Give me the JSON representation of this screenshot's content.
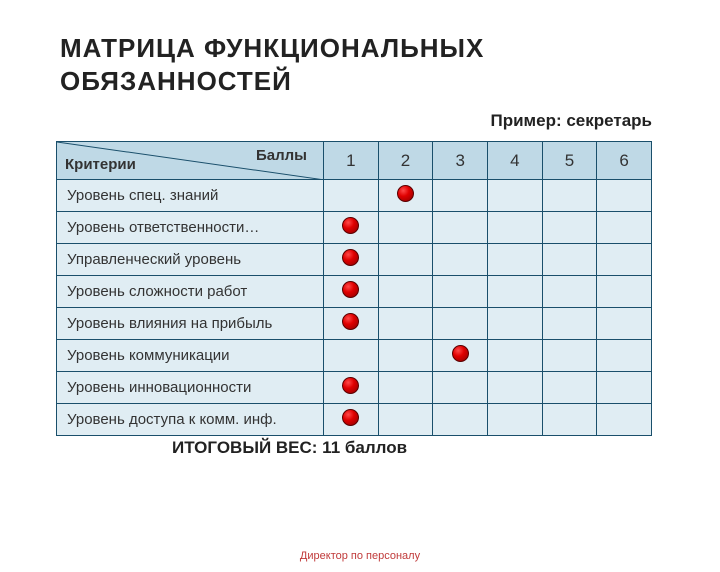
{
  "title": "МАТРИЦА ФУНКЦИОНАЛЬНЫХ ОБЯЗАННОСТЕЙ",
  "example": "Пример: секретарь",
  "table": {
    "header_left": "Критерии",
    "header_right": "Баллы",
    "score_columns": [
      "1",
      "2",
      "3",
      "4",
      "5",
      "6"
    ],
    "rows": [
      {
        "label": "Уровень спец. знаний",
        "score": 2
      },
      {
        "label": "Уровень ответственности…",
        "score": 1
      },
      {
        "label": "Управленческий уровень",
        "score": 1
      },
      {
        "label": "Уровень сложности работ",
        "score": 1
      },
      {
        "label": "Уровень влияния на прибыль",
        "score": 1
      },
      {
        "label": "Уровень коммуникации",
        "score": 3
      },
      {
        "label": "Уровень инновационности",
        "score": 1
      },
      {
        "label": "Уровень доступа к комм. инф.",
        "score": 1
      }
    ]
  },
  "total_line": "ИТОГОВЫЙ ВЕС: 11 баллов",
  "footer": "Директор по персоналу",
  "colors": {
    "header_bg": "#bfd9e6",
    "cell_bg": "#e0edf3",
    "border": "#1a4f6b",
    "dot_fill": "#e00000",
    "footer_text": "#c03a3a"
  }
}
